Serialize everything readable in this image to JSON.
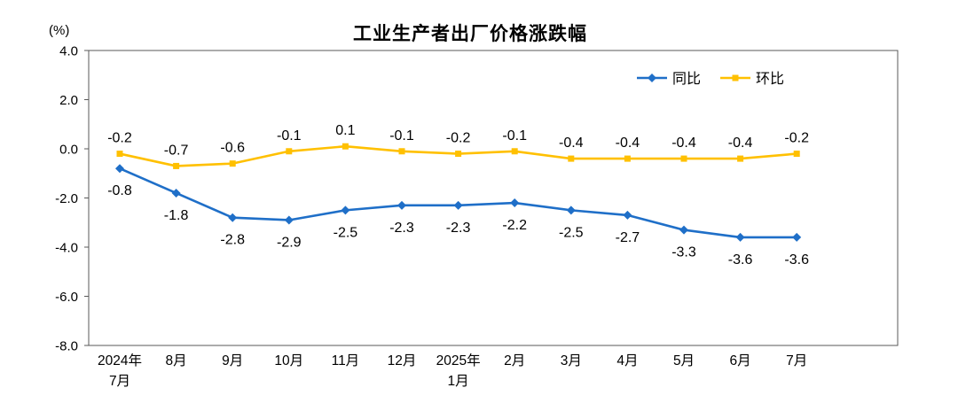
{
  "chart_data": {
    "type": "line",
    "title": "工业生产者出厂价格涨跌幅",
    "unit_label": "(%)",
    "categories": [
      "2024年\n7月",
      "8月",
      "9月",
      "10月",
      "11月",
      "12月",
      "2025年\n1月",
      "2月",
      "3月",
      "4月",
      "5月",
      "6月",
      "7月"
    ],
    "series": [
      {
        "name": "同比",
        "color": "#1f6fc8",
        "marker": "diamond",
        "label_position": "below",
        "values": [
          -0.8,
          -1.8,
          -2.8,
          -2.9,
          -2.5,
          -2.3,
          -2.3,
          -2.2,
          -2.5,
          -2.7,
          -3.3,
          -3.6,
          -3.6
        ]
      },
      {
        "name": "环比",
        "color": "#ffc000",
        "marker": "square",
        "label_position": "above",
        "values": [
          -0.2,
          -0.7,
          -0.6,
          -0.1,
          0.1,
          -0.1,
          -0.2,
          -0.1,
          -0.4,
          -0.4,
          -0.4,
          -0.4,
          -0.2
        ]
      }
    ],
    "ylim": [
      -8.0,
      4.0
    ],
    "yticks": [
      4.0,
      2.0,
      0.0,
      -2.0,
      -4.0,
      -6.0,
      -8.0
    ],
    "ytick_labels": [
      "4.0",
      "2.0",
      "0.0",
      "-2.0",
      "-4.0",
      "-6.0",
      "-8.0"
    ],
    "grid": false,
    "legend_position": "top-right",
    "axis_color": "#595959",
    "text_color": "#000000"
  }
}
